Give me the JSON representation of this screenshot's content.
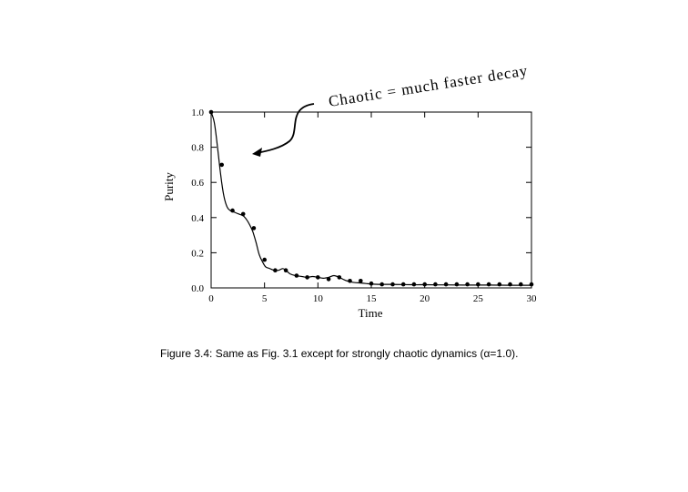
{
  "chart_data": {
    "type": "line",
    "xlabel": "Time",
    "ylabel": "Purity",
    "xlim": [
      0,
      30
    ],
    "ylim": [
      0,
      1.0
    ],
    "xticks": [
      0,
      5,
      10,
      15,
      20,
      25,
      30
    ],
    "yticks": [
      "0.0",
      "0.2",
      "0.4",
      "0.6",
      "0.8",
      "1.0"
    ],
    "annotation": "Chaotic = much faster decay",
    "series": [
      {
        "kind": "curve",
        "x": [
          0,
          0.3,
          0.6,
          0.9,
          1.2,
          1.5,
          1.8,
          2.2,
          2.6,
          3.0,
          3.3,
          3.6,
          3.9,
          4.2,
          4.5,
          4.8,
          5.1,
          5.5,
          5.9,
          6.3,
          6.7,
          7.0,
          7.4,
          7.9,
          8.5,
          9.0,
          9.5,
          10.0,
          10.5,
          11.0,
          11.5,
          12.0,
          12.5,
          13.0,
          13.5,
          14.0,
          14.5,
          15.0,
          16,
          17,
          18,
          19,
          20,
          22,
          24,
          26,
          28,
          30
        ],
        "y": [
          1.0,
          0.94,
          0.8,
          0.64,
          0.52,
          0.46,
          0.44,
          0.43,
          0.42,
          0.41,
          0.39,
          0.36,
          0.32,
          0.26,
          0.19,
          0.15,
          0.12,
          0.11,
          0.1,
          0.1,
          0.11,
          0.1,
          0.08,
          0.07,
          0.065,
          0.06,
          0.065,
          0.06,
          0.055,
          0.06,
          0.07,
          0.06,
          0.045,
          0.035,
          0.03,
          0.028,
          0.025,
          0.022,
          0.02,
          0.02,
          0.019,
          0.018,
          0.018,
          0.017,
          0.016,
          0.016,
          0.015,
          0.015
        ]
      },
      {
        "kind": "points",
        "x": [
          0,
          1,
          2,
          3,
          4,
          5,
          6,
          7,
          8,
          9,
          10,
          11,
          12,
          13,
          14,
          15,
          16,
          17,
          18,
          19,
          20,
          21,
          22,
          23,
          24,
          25,
          26,
          27,
          28,
          29,
          30
        ],
        "y": [
          1.0,
          0.7,
          0.44,
          0.42,
          0.34,
          0.16,
          0.1,
          0.1,
          0.07,
          0.06,
          0.06,
          0.05,
          0.06,
          0.04,
          0.04,
          0.025,
          0.02,
          0.02,
          0.02,
          0.02,
          0.02,
          0.02,
          0.02,
          0.02,
          0.02,
          0.02,
          0.02,
          0.02,
          0.02,
          0.02,
          0.02
        ]
      }
    ]
  },
  "caption": "Figure 3.4:  Same as Fig. 3.1 except for strongly chaotic dynamics (α=1.0)."
}
